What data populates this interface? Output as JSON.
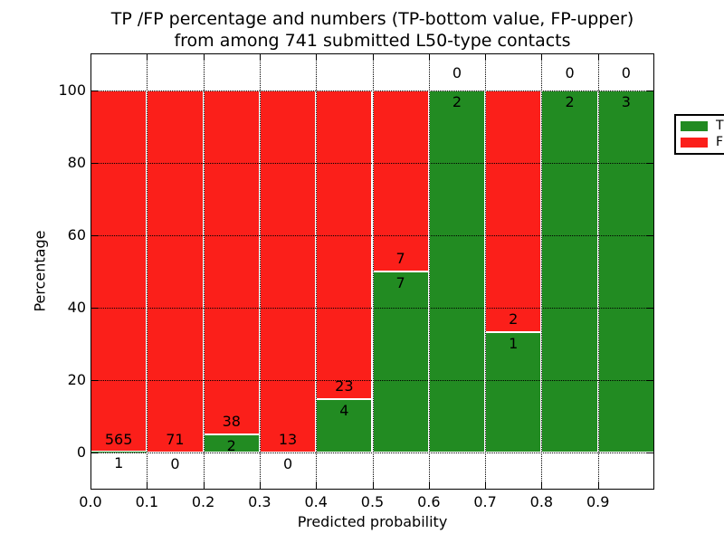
{
  "figure": {
    "title_line1": "TP /FP percentage and numbers (TP-bottom value, FP-upper)",
    "title_line2": "from among 741 submitted L50-type contacts"
  },
  "chart_data": {
    "type": "bar",
    "subtype": "stacked-percentage",
    "title": "TP /FP percentage and numbers (TP-bottom value, FP-upper)\nfrom among 741 submitted L50-type contacts",
    "xlabel": "Predicted probability",
    "ylabel": "Percentage",
    "total_submitted": 741,
    "categories": [
      "0.0-0.1",
      "0.1-0.2",
      "0.2-0.3",
      "0.3-0.4",
      "0.4-0.5",
      "0.5-0.6",
      "0.6-0.7",
      "0.7-0.8",
      "0.8-0.9",
      "0.9-1.0"
    ],
    "x_tick_labels": [
      "0.0",
      "0.1",
      "0.2",
      "0.3",
      "0.4",
      "0.5",
      "0.6",
      "0.7",
      "0.8",
      "0.9"
    ],
    "y_ticks": [
      0,
      20,
      40,
      60,
      80,
      100
    ],
    "xlim": [
      0.0,
      1.0
    ],
    "ylim": [
      -10.25,
      110.25
    ],
    "series": [
      {
        "name": "TP",
        "color": "#228b22",
        "values": [
          1,
          0,
          2,
          0,
          4,
          7,
          2,
          1,
          2,
          3
        ]
      },
      {
        "name": "FP",
        "color": "#fb1f1a",
        "values": [
          565,
          71,
          38,
          13,
          23,
          7,
          0,
          2,
          0,
          0
        ]
      }
    ],
    "tp_percent": [
      0.18,
      0.0,
      5.0,
      0.0,
      14.81,
      50.0,
      100.0,
      33.33,
      100.0,
      100.0
    ],
    "legend": {
      "location": "upper right",
      "entries": [
        "TP",
        "FP"
      ]
    },
    "grid": {
      "style": "dotted",
      "color": "#000000"
    }
  },
  "colors": {
    "tp_green": "#228b22",
    "fp_red": "#fb1f1a",
    "bar_edge": "#ffffff",
    "background": "#ffffff",
    "text": "#000000"
  }
}
